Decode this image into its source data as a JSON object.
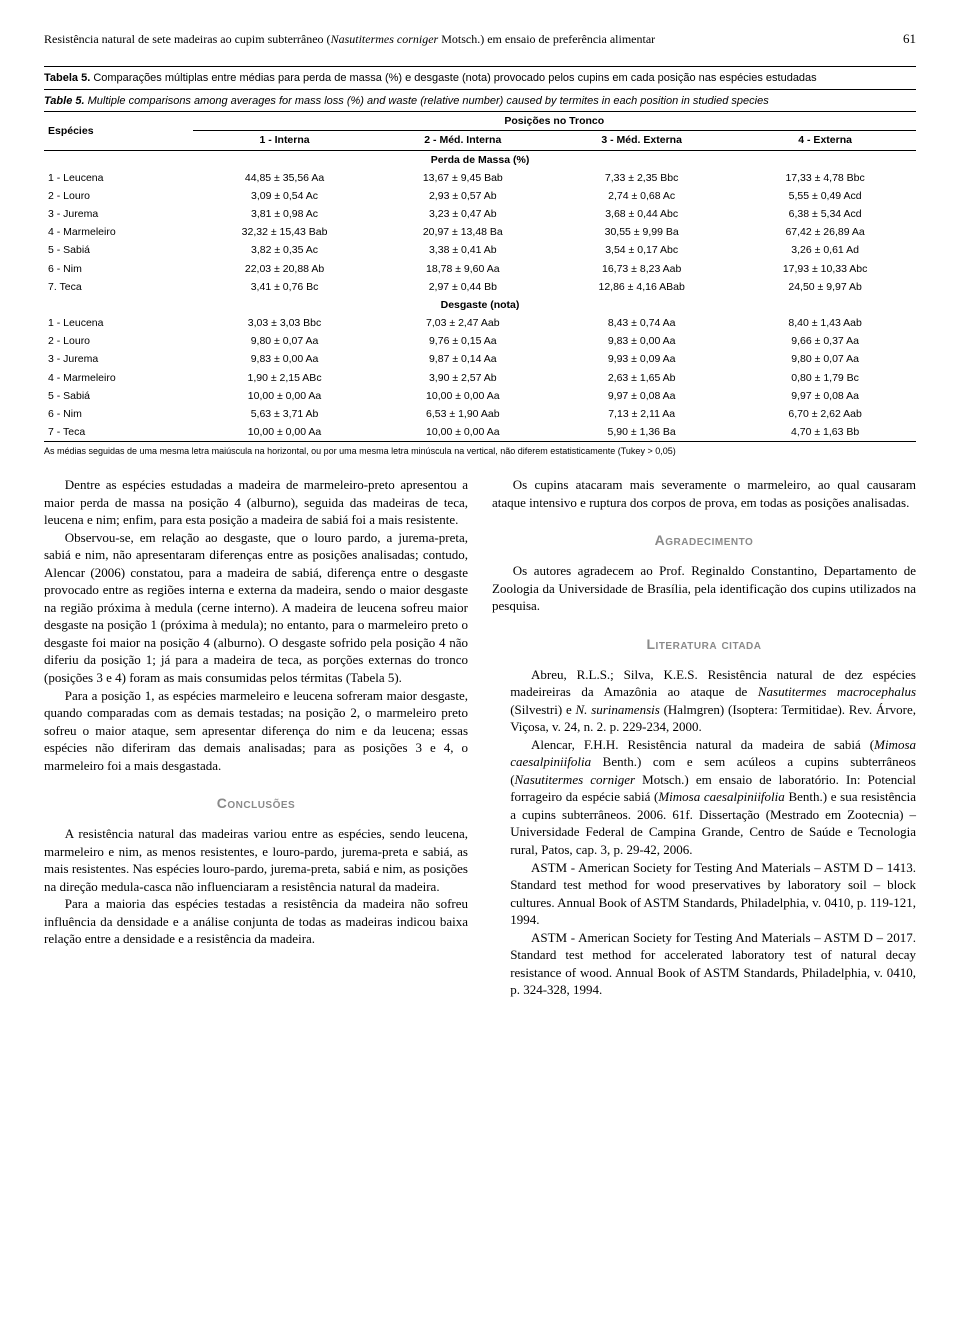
{
  "header": {
    "title_plain": "Resistência natural de sete madeiras ao cupim subterrâneo (",
    "title_species": "Nasutitermes corniger",
    "title_after": " Motsch.) em ensaio de preferência alimentar",
    "page_number": "61"
  },
  "table": {
    "caption_pt_label": "Tabela 5.",
    "caption_pt_text": " Comparações múltiplas entre médias para perda de massa (%) e desgaste (nota) provocado pelos cupins em cada posição nas espécies estudadas",
    "caption_en_label": "Table 5.",
    "caption_en_text": " Multiple comparisons among averages for mass loss (%) and waste (relative number) caused by termites in each position in studied species",
    "col_especies": "Espécies",
    "col_group": "Posições no Tronco",
    "col1": "1 - Interna",
    "col2": "2 - Méd. Interna",
    "col3": "3 - Méd. Externa",
    "col4": "4 - Externa",
    "section_mass": "Perda de Massa (%)",
    "section_wear": "Desgaste (nota)",
    "mass_rows": [
      {
        "sp": "1 - Leucena",
        "c1": "44,85 ± 35,56 Aa",
        "c2": "13,67 ± 9,45 Bab",
        "c3": "7,33 ± 2,35 Bbc",
        "c4": "17,33 ± 4,78 Bbc"
      },
      {
        "sp": "2 - Louro",
        "c1": "3,09 ± 0,54 Ac",
        "c2": "2,93 ± 0,57 Ab",
        "c3": "2,74 ± 0,68 Ac",
        "c4": "5,55 ± 0,49 Acd"
      },
      {
        "sp": "3 - Jurema",
        "c1": "3,81 ± 0,98 Ac",
        "c2": "3,23 ± 0,47 Ab",
        "c3": "3,68 ± 0,44 Abc",
        "c4": "6,38 ± 5,34 Acd"
      },
      {
        "sp": "4 - Marmeleiro",
        "c1": "32,32 ± 15,43 Bab",
        "c2": "20,97 ± 13,48 Ba",
        "c3": "30,55 ± 9,99 Ba",
        "c4": "67,42 ± 26,89 Aa"
      },
      {
        "sp": "5 - Sabiá",
        "c1": "3,82 ± 0,35 Ac",
        "c2": "3,38 ± 0,41 Ab",
        "c3": "3,54 ± 0,17 Abc",
        "c4": "3,26 ± 0,61 Ad"
      },
      {
        "sp": "6 - Nim",
        "c1": "22,03 ± 20,88 Ab",
        "c2": "18,78 ± 9,60 Aa",
        "c3": "16,73 ± 8,23 Aab",
        "c4": "17,93 ± 10,33 Abc"
      },
      {
        "sp": "7. Teca",
        "c1": "3,41 ± 0,76 Bc",
        "c2": "2,97 ± 0,44 Bb",
        "c3": "12,86 ± 4,16 ABab",
        "c4": "24,50 ± 9,97 Ab"
      }
    ],
    "wear_rows": [
      {
        "sp": "1 - Leucena",
        "c1": "3,03 ± 3,03 Bbc",
        "c2": "7,03 ± 2,47 Aab",
        "c3": "8,43 ± 0,74 Aa",
        "c4": "8,40 ± 1,43 Aab"
      },
      {
        "sp": "2 - Louro",
        "c1": "9,80 ± 0,07 Aa",
        "c2": "9,76 ± 0,15 Aa",
        "c3": "9,83 ± 0,00 Aa",
        "c4": "9,66 ± 0,37 Aa"
      },
      {
        "sp": "3 - Jurema",
        "c1": "9,83 ± 0,00 Aa",
        "c2": "9,87 ± 0,14 Aa",
        "c3": "9,93 ± 0,09 Aa",
        "c4": "9,80 ± 0,07 Aa"
      },
      {
        "sp": "4 - Marmeleiro",
        "c1": "1,90 ± 2,15 ABc",
        "c2": "3,90 ± 2,57 Ab",
        "c3": "2,63 ± 1,65 Ab",
        "c4": "0,80 ± 1,79 Bc"
      },
      {
        "sp": "5 - Sabiá",
        "c1": "10,00 ± 0,00 Aa",
        "c2": "10,00 ± 0,00 Aa",
        "c3": "9,97 ± 0,08 Aa",
        "c4": "9,97 ± 0,08 Aa"
      },
      {
        "sp": "6 - Nim",
        "c1": "5,63 ± 3,71 Ab",
        "c2": "6,53 ± 1,90 Aab",
        "c3": "7,13 ± 2,11 Aa",
        "c4": "6,70 ± 2,62 Aab"
      },
      {
        "sp": "7 - Teca",
        "c1": "10,00 ± 0,00 Aa",
        "c2": "10,00 ± 0,00 Aa",
        "c3": "5,90 ± 1,36 Ba",
        "c4": "4,70 ± 1,63 Bb"
      }
    ],
    "note": "As médias seguidas de uma mesma letra maiúscula na horizontal, ou por uma mesma letra minúscula na vertical, não diferem estatisticamente (Tukey > 0,05)"
  },
  "body_left": {
    "p1": "Dentre as espécies estudadas a madeira de marmeleiro-preto apresentou a maior perda de massa na posição 4 (alburno), seguida das madeiras de teca, leucena e nim; enfim, para esta posição a madeira de sabiá foi a mais resistente.",
    "p2": "Observou-se, em relação ao desgaste, que o louro pardo, a jurema-preta, sabiá e nim, não apresentaram diferenças entre as posições analisadas; contudo, Alencar (2006) constatou, para a madeira de sabiá, diferença entre o desgaste provocado entre as regiões interna e externa da madeira, sendo o maior desgaste na região próxima à medula (cerne interno). A madeira de leucena sofreu maior desgaste na posição 1 (próxima à medula); no entanto, para o marmeleiro preto o desgaste foi maior na posição 4 (alburno). O desgaste sofrido pela posição 4 não diferiu da posição 1; já para a madeira de teca, as porções externas do tronco (posições 3 e 4) foram as mais consumidas pelos térmitas (Tabela 5).",
    "p3": "Para a posição 1, as espécies marmeleiro e leucena sofreram maior desgaste, quando comparadas com as demais testadas; na posição 2, o marmeleiro preto sofreu o maior ataque, sem apresentar diferença do nim e da leucena; essas espécies não diferiram das demais analisadas; para as posições 3 e 4, o marmeleiro foi a mais desgastada.",
    "h_concl": "Conclusões",
    "p4": "A resistência natural das madeiras variou entre as espécies, sendo leucena, marmeleiro e nim, as menos resistentes, e louro-pardo, jurema-preta e sabiá, as mais resistentes. Nas espécies louro-pardo, jurema-preta, sabiá e nim, as posições na direção medula-casca não influenciaram a resistência natural da madeira.",
    "p5": "Para a maioria das espécies testadas a resistência da madeira não sofreu influência da densidade e a análise conjunta de todas as madeiras indicou baixa relação entre a densidade e a resistência da madeira."
  },
  "body_right": {
    "p1": "Os cupins atacaram mais severamente o marmeleiro, ao qual causaram ataque intensivo e ruptura dos corpos de prova, em todas as posições analisadas.",
    "h_agrad": "Agradecimento",
    "p2": "Os autores agradecem ao Prof. Reginaldo Constantino, Departamento de Zoologia da Universidade de Brasília, pela identificação dos cupins utilizados na pesquisa.",
    "h_lit": "Literatura citada",
    "refs": [
      "Abreu, R.L.S.; Silva, K.E.S. Resistência natural de dez espécies madeireiras da Amazônia ao ataque de <em>Nasutitermes macrocephalus</em> (Silvestri) e <em>N. surinamensis</em> (Halmgren) (Isoptera: Termitidae). Rev. Árvore, Viçosa, v. 24, n. 2. p. 229-234, 2000.",
      "Alencar, F.H.H. Resistência natural da madeira de sabiá (<em>Mimosa caesalpiniifolia</em> Benth.) com e sem acúleos a cupins subterrâneos (<em>Nasutitermes corniger</em> Motsch.) em ensaio de laboratório. In: Potencial forrageiro da espécie sabiá (<em>Mimosa caesalpiniifolia</em> Benth.) e sua resistência a cupins subterrâneos. 2006. 61f. Dissertação (Mestrado em Zootecnia) – Universidade Federal de Campina Grande, Centro de Saúde e Tecnologia rural, Patos, cap. 3, p. 29-42, 2006.",
      "ASTM - American Society for Testing And Materials – ASTM D – 1413. Standard test method for wood preservatives by laboratory soil – block cultures. Annual Book of ASTM Standards, Philadelphia, v. 0410, p. 119-121, 1994.",
      "ASTM - American Society for Testing And Materials – ASTM D – 2017. Standard test method for accelerated laboratory test of natural decay resistance of wood. Annual Book of ASTM Standards, Philadelphia, v. 0410, p. 324-328, 1994."
    ]
  }
}
